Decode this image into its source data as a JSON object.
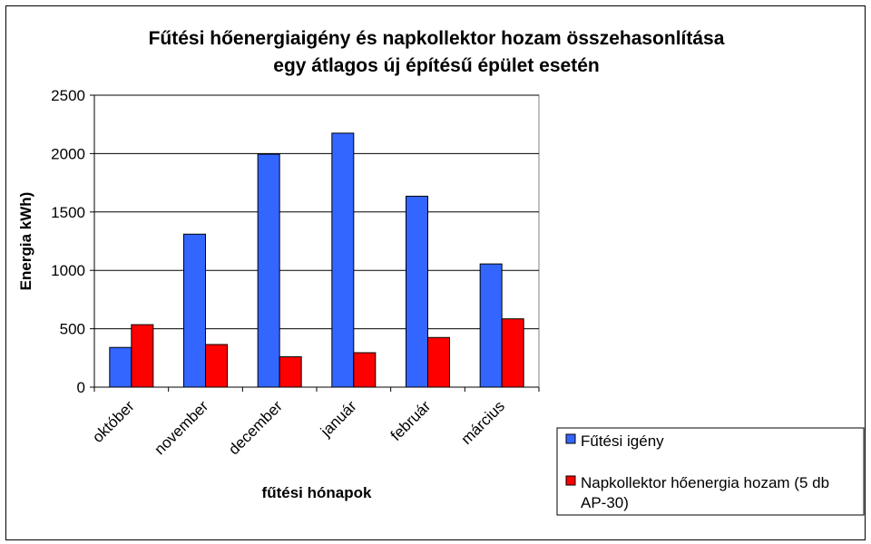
{
  "chart_data": {
    "type": "bar",
    "title_lines": [
      "Fűtési hőenergiaigény és napkollektor hozam összehasonlítása",
      "egy átlagos új építésű épület esetén"
    ],
    "xlabel": "fűtési hónapok",
    "ylabel": "Energia kWh)",
    "categories": [
      "október",
      "november",
      "december",
      "január",
      "február",
      "március"
    ],
    "ylim": [
      0,
      2500
    ],
    "yticks": [
      0,
      500,
      1000,
      1500,
      2000,
      2500
    ],
    "grid": true,
    "legend_position": "right",
    "series": [
      {
        "name": "Fűtési igény",
        "color": "#3366ff",
        "values": [
          340,
          1310,
          1995,
          2175,
          1635,
          1055
        ]
      },
      {
        "name": "Napkollektor hőenergia hozam (5 db AP-30)",
        "color": "#ff0000",
        "values": [
          535,
          365,
          260,
          295,
          425,
          585
        ]
      }
    ],
    "legend_lines": [
      [
        "Fűtési igény"
      ],
      [
        "Napkollektor hőenergia hozam (5 db",
        "AP-30)"
      ]
    ]
  }
}
